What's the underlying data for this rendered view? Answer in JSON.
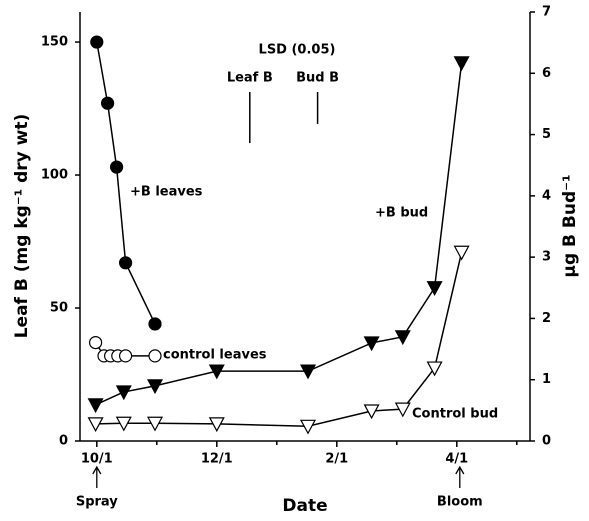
{
  "chart_data": {
    "type": "line",
    "xlabel": "Date",
    "ylabel": "Leaf B (mg kg⁻¹ dry wt)",
    "y2label": "µg B Bud⁻¹",
    "xlim": [
      -0.28,
      7.22
    ],
    "xticks": [
      {
        "value": 0,
        "label": "10/1"
      },
      {
        "value": 2,
        "label": "12/1"
      },
      {
        "value": 4,
        "label": "2/1"
      },
      {
        "value": 6,
        "label": "4/1"
      }
    ],
    "xminorticks": [
      1,
      3,
      5,
      7
    ],
    "ylim": [
      0,
      161.3
    ],
    "yticks": [
      0,
      50,
      100,
      150
    ],
    "y2lim": [
      0,
      7
    ],
    "y2ticks": [
      0,
      1,
      2,
      3,
      4,
      5,
      6,
      7
    ],
    "series": [
      {
        "name": "+B leaves",
        "marker": "filled-circle",
        "color": "#000",
        "x": [
          0,
          0.18,
          0.33,
          0.48,
          0.97
        ],
        "values": [
          150,
          127,
          103,
          67,
          44
        ]
      },
      {
        "name": "control leaves",
        "marker": "open-circle",
        "color": "#000",
        "x": [
          -0.02,
          0.12,
          0.23,
          0.35,
          0.48,
          0.97
        ],
        "values": [
          37,
          32,
          32,
          32,
          32,
          32
        ]
      },
      {
        "name": "+B bud",
        "marker": "filled-triangle-down",
        "color": "#000",
        "axis": "y2",
        "x": [
          -0.02,
          0.45,
          0.97,
          2.0,
          3.52,
          4.58,
          5.1,
          5.63,
          6.08
        ],
        "values": [
          0.59,
          0.8,
          0.9,
          1.14,
          1.14,
          1.6,
          1.7,
          2.5,
          6.17
        ]
      },
      {
        "name": "Control bud",
        "marker": "open-triangle-down",
        "color": "#000",
        "axis": "y2",
        "x": [
          -0.02,
          0.45,
          0.97,
          2.0,
          3.52,
          4.58,
          5.1,
          5.63,
          6.08
        ],
        "values": [
          0.28,
          0.29,
          0.29,
          0.28,
          0.24,
          0.49,
          0.52,
          1.19,
          3.08
        ]
      }
    ],
    "lsd": {
      "title": "LSD (0.05)",
      "items": [
        {
          "label": "Leaf B",
          "value": 19.2,
          "x": 2.55
        },
        {
          "label": "Bud B",
          "value": 0.52,
          "axis": "y2",
          "x": 3.68
        }
      ]
    },
    "events": [
      {
        "label": "Spray",
        "x": 0
      },
      {
        "label": "Bloom",
        "x": 6.05
      }
    ]
  }
}
